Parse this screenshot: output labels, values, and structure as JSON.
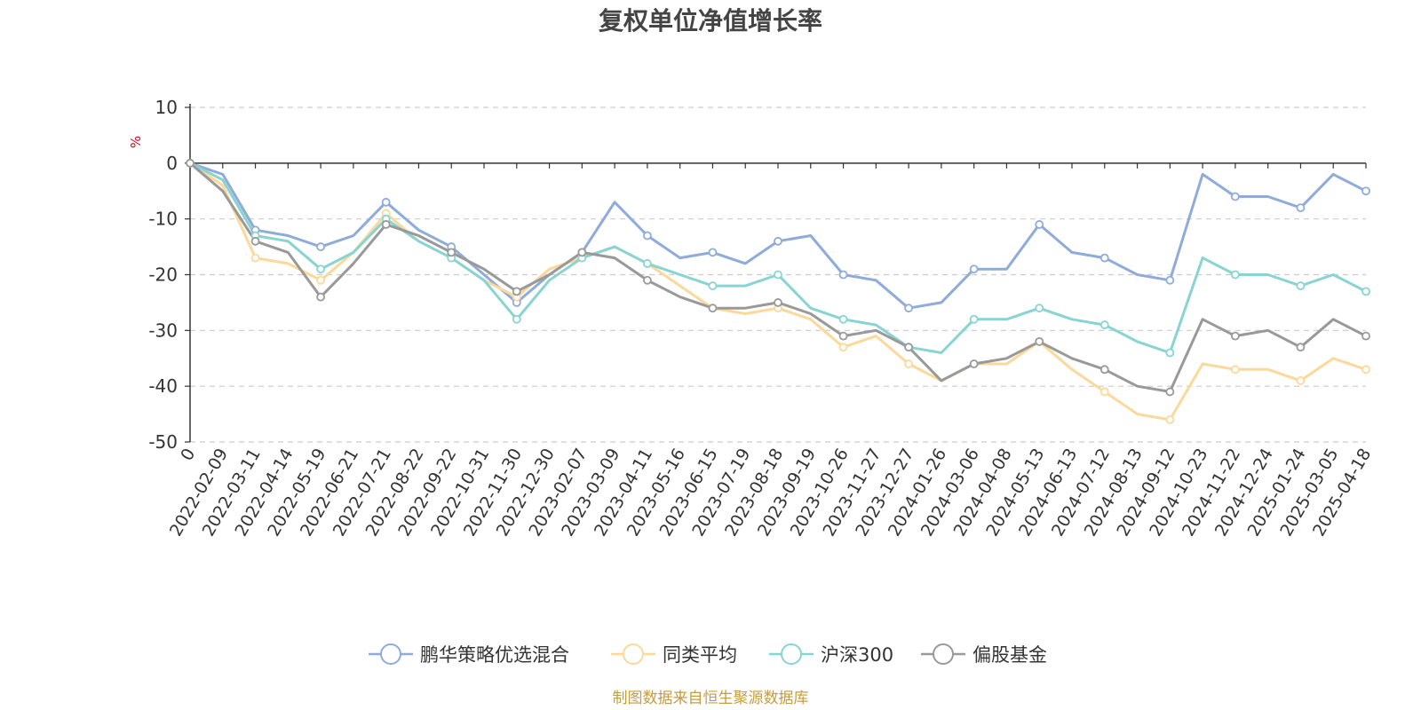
{
  "chart_data": {
    "type": "line",
    "title": "复权单位净值增长率",
    "ylabel": "%",
    "ylim": [
      -50,
      10
    ],
    "yticks": [
      10,
      0,
      -10,
      -20,
      -30,
      -40,
      -50
    ],
    "x_tick_labels": [
      "0",
      "2022-02-09",
      "2022-03-11",
      "2022-04-14",
      "2022-05-19",
      "2022-06-21",
      "2022-07-21",
      "2022-08-22",
      "2022-09-22",
      "2022-10-31",
      "2022-11-30",
      "2022-12-30",
      "2023-02-07",
      "2023-03-09",
      "2023-04-11",
      "2023-05-16",
      "2023-06-15",
      "2023-07-19",
      "2023-08-18",
      "2023-09-19",
      "2023-10-26",
      "2023-11-27",
      "2023-12-27",
      "2024-01-26",
      "2024-03-06",
      "2024-04-08",
      "2024-05-13",
      "2024-06-13",
      "2024-07-12",
      "2024-08-13",
      "2024-09-12",
      "2024-10-23",
      "2024-11-22",
      "2024-12-24",
      "2025-01-24",
      "2025-03-05",
      "2025-04-18"
    ],
    "legend_position": "bottom",
    "grid": true,
    "series": [
      {
        "name": "鹏华策略优选混合",
        "color": "#8eabd9",
        "values": [
          0,
          -2,
          -12,
          -13,
          -15,
          -13,
          -7,
          -12,
          -15,
          -20,
          -25,
          -20,
          -16,
          -7,
          -13,
          -17,
          -16,
          -18,
          -14,
          -13,
          -20,
          -21,
          -26,
          -25,
          -19,
          -19,
          -11,
          -16,
          -17,
          -20,
          -21,
          -2,
          -6,
          -6,
          -8,
          -2,
          -5
        ]
      },
      {
        "name": "同类平均",
        "color": "#fcd89a",
        "values": [
          0,
          -4,
          -17,
          -18,
          -21,
          -16,
          -9,
          -14,
          -17,
          -21,
          -24,
          -19,
          -17,
          -15,
          -18,
          -22,
          -26,
          -27,
          -26,
          -28,
          -33,
          -31,
          -36,
          -39,
          -36,
          -36,
          -32,
          -37,
          -41,
          -45,
          -46,
          -36,
          -37,
          -37,
          -39,
          -35,
          -37
        ]
      },
      {
        "name": "沪深300",
        "color": "#88d4d2",
        "values": [
          0,
          -3,
          -13,
          -14,
          -19,
          -16,
          -10,
          -14,
          -17,
          -21,
          -28,
          -21,
          -17,
          -15,
          -18,
          -20,
          -22,
          -22,
          -20,
          -26,
          -28,
          -29,
          -33,
          -34,
          -28,
          -28,
          -26,
          -28,
          -29,
          -32,
          -34,
          -17,
          -20,
          -20,
          -22,
          -20,
          -23
        ]
      },
      {
        "name": "偏股基金",
        "color": "#999999",
        "values": [
          0,
          -5,
          -14,
          -16,
          -24,
          -18,
          -11,
          -13,
          -16,
          -19,
          -23,
          -20,
          -16,
          -17,
          -21,
          -24,
          -26,
          -26,
          -25,
          -27,
          -31,
          -30,
          -33,
          -39,
          -36,
          -35,
          -32,
          -35,
          -37,
          -40,
          -41,
          -28,
          -31,
          -30,
          -33,
          -28,
          -31
        ]
      }
    ]
  },
  "footer": {
    "source": "制图数据来自恒生聚源数据库"
  }
}
